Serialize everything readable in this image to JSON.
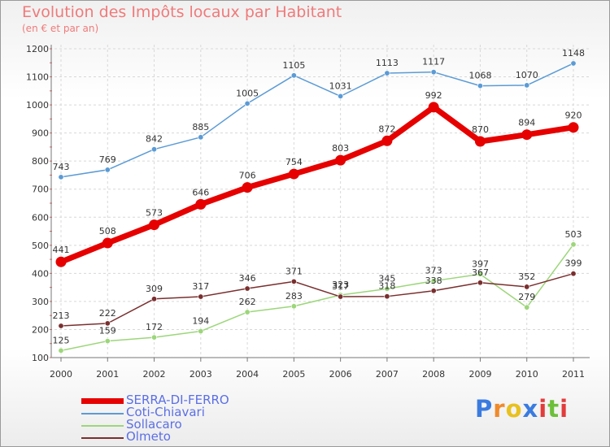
{
  "title": "Evolution des Impôts locaux par Habitant",
  "subtitle": "(en € et par an)",
  "brand": {
    "text": "Proxiti",
    "colors": [
      "#3a7be0",
      "#f08a2a",
      "#e8c120",
      "#3a7be0",
      "#e23b3b",
      "#6dbf3a",
      "#e23b3b"
    ]
  },
  "chart_data": {
    "type": "line",
    "title": "Evolution des Impôts locaux par Habitant",
    "subtitle": "(en € et par an)",
    "xlabel": "",
    "ylabel": "",
    "x": [
      "2000",
      "2001",
      "2002",
      "2003",
      "2004",
      "2005",
      "2006",
      "2007",
      "2008",
      "2009",
      "2010",
      "2011"
    ],
    "ylim": [
      100,
      1200
    ],
    "yticks": [
      100,
      200,
      300,
      400,
      500,
      600,
      700,
      800,
      900,
      1000,
      1100,
      1200
    ],
    "grid": true,
    "legend_position": "bottom-left",
    "series": [
      {
        "name": "SERRA-DI-FERRO",
        "color": "#e60000",
        "emphasis": "thick",
        "values": [
          441,
          508,
          573,
          646,
          706,
          754,
          803,
          872,
          992,
          870,
          894,
          920
        ]
      },
      {
        "name": "Coti-Chiavari",
        "color": "#5b9bd5",
        "emphasis": "thin",
        "values": [
          743,
          769,
          842,
          885,
          1005,
          1105,
          1031,
          1113,
          1117,
          1068,
          1070,
          1148
        ]
      },
      {
        "name": "Sollacaro",
        "color": "#9cd67a",
        "emphasis": "thin",
        "values": [
          125,
          159,
          172,
          194,
          262,
          283,
          323,
          345,
          373,
          397,
          279,
          503
        ]
      },
      {
        "name": "Olmeto",
        "color": "#7a2f2f",
        "emphasis": "thin",
        "values": [
          213,
          222,
          309,
          317,
          346,
          371,
          317,
          318,
          338,
          367,
          352,
          399
        ]
      }
    ]
  }
}
